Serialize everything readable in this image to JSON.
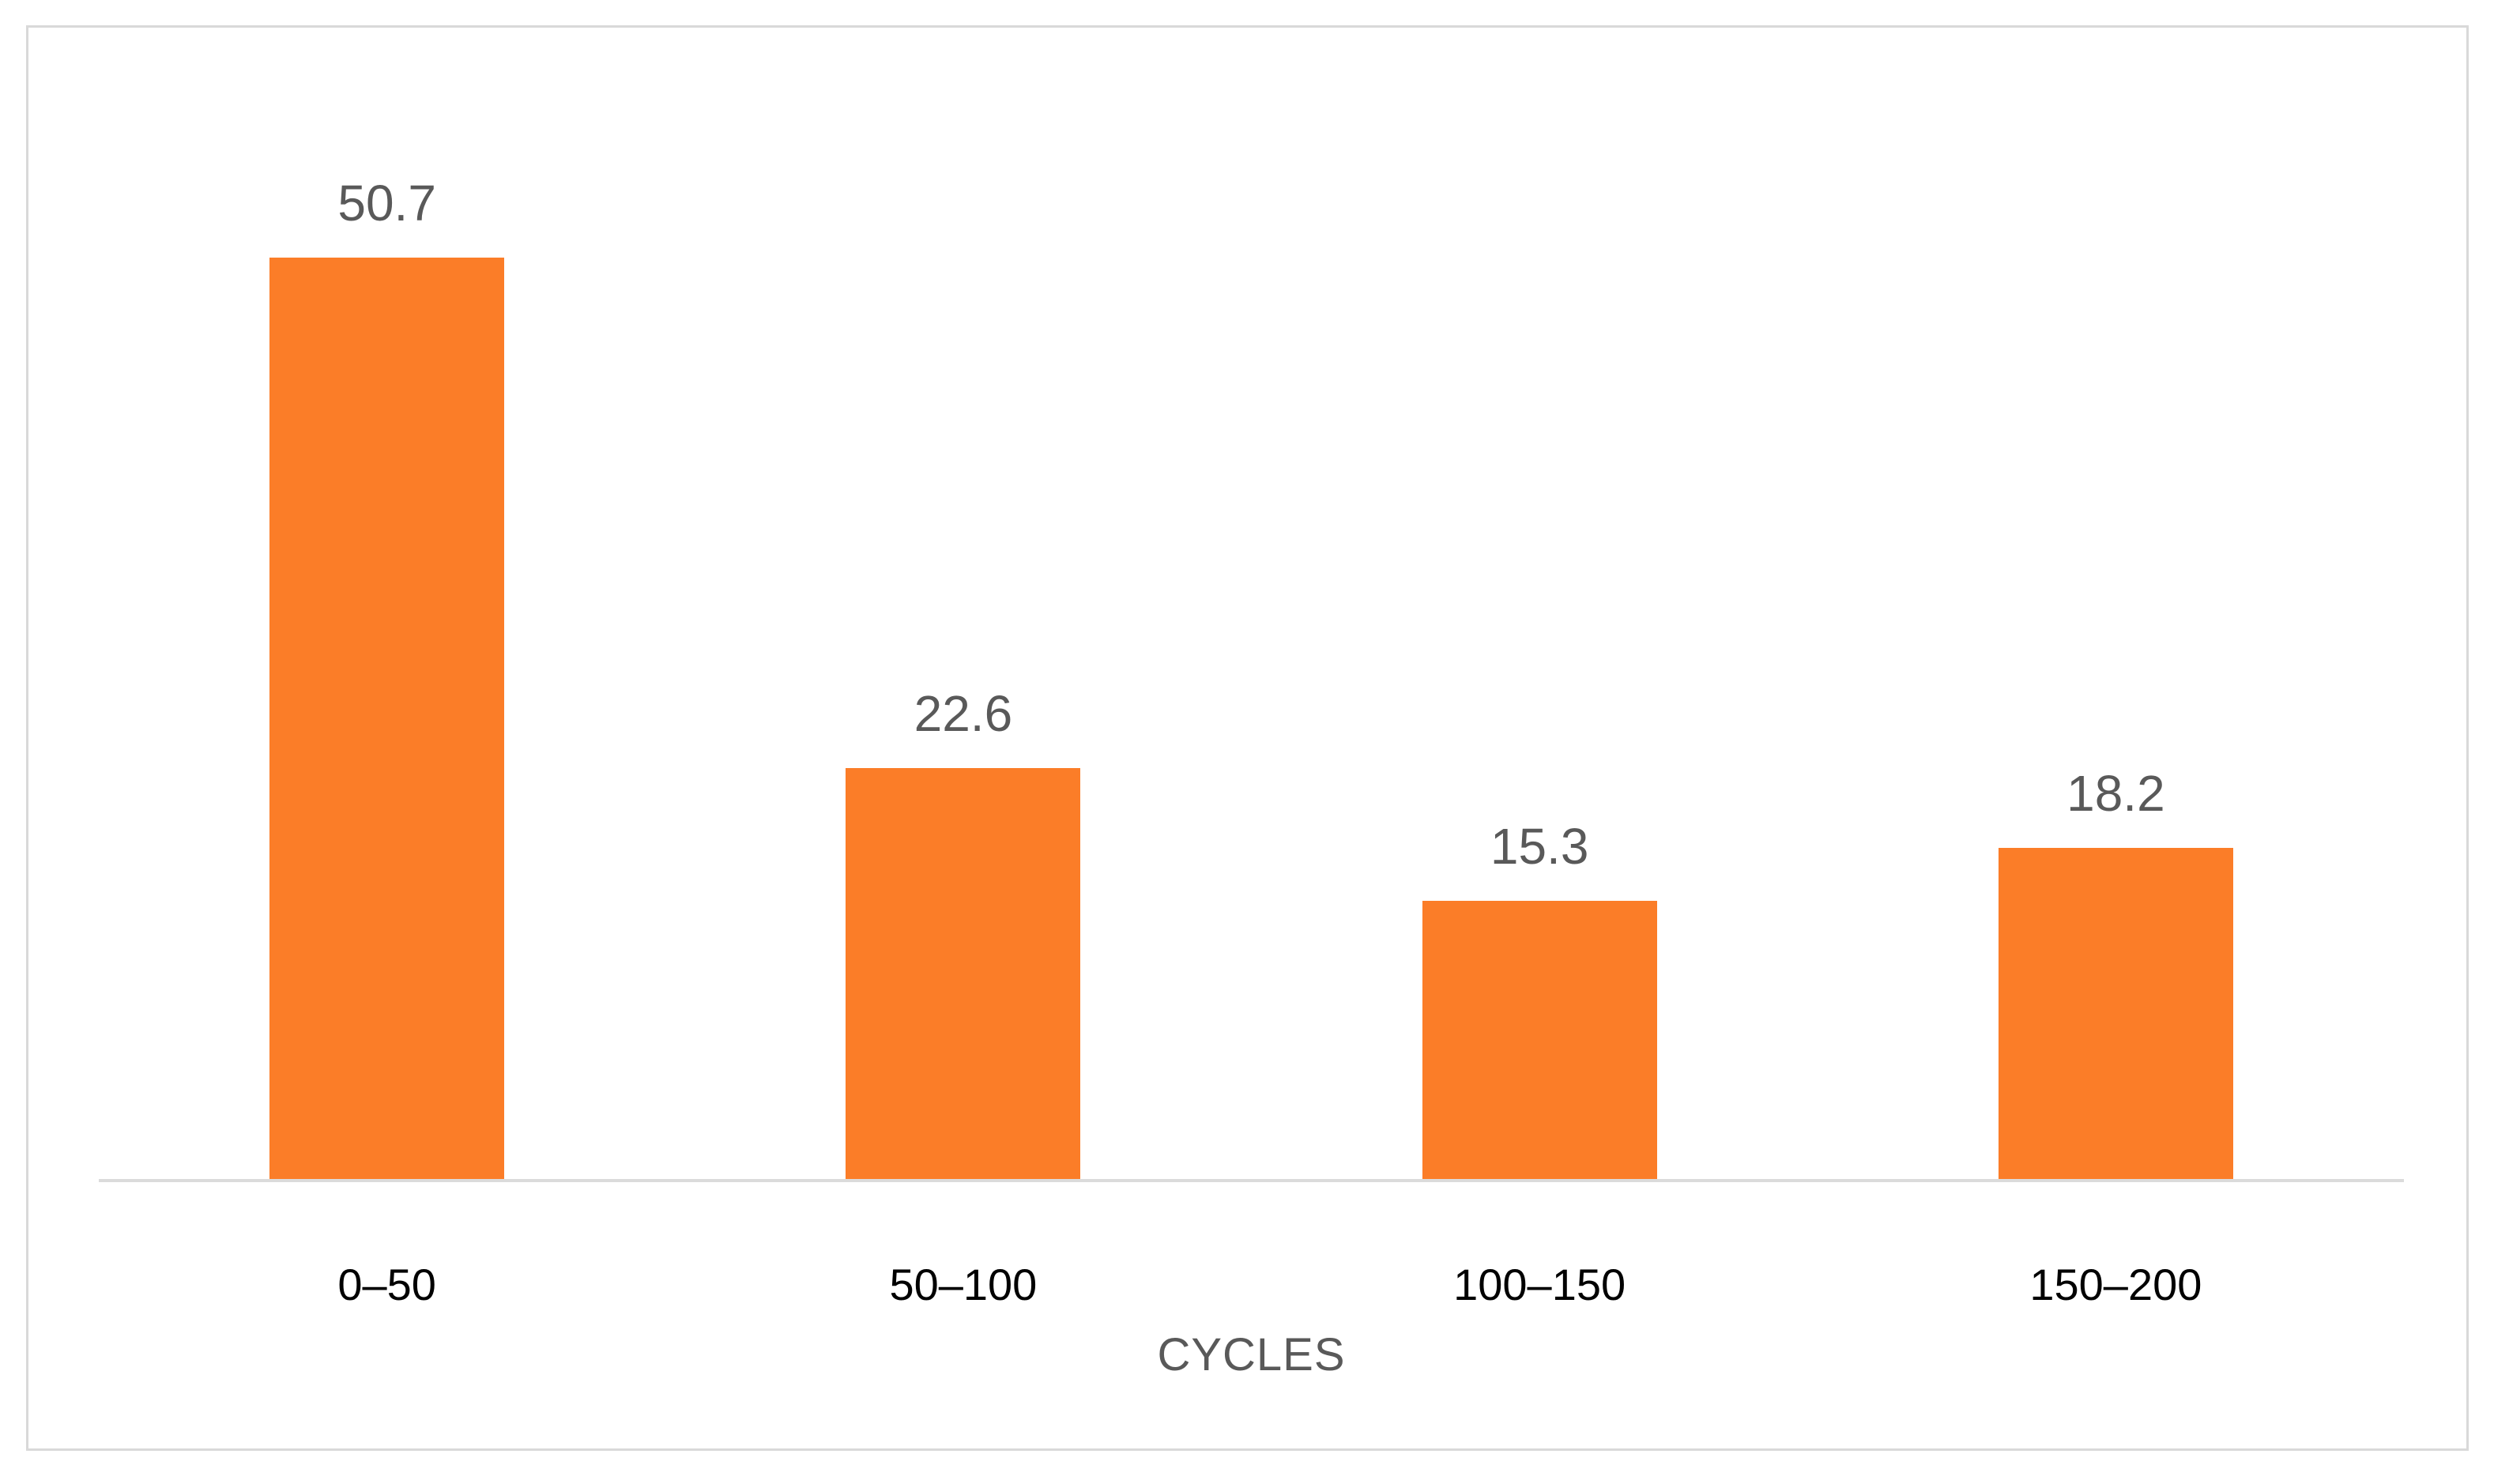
{
  "chart_data": {
    "type": "bar",
    "categories": [
      "0–50",
      "50–100",
      "100–150",
      "150–200"
    ],
    "values": [
      50.7,
      22.6,
      15.3,
      18.2
    ],
    "data_labels": [
      "50.7",
      "22.6",
      "15.3",
      "18.2"
    ],
    "title": "",
    "xlabel": "CYCLES",
    "ylabel": "",
    "ylim": [
      0,
      55
    ],
    "grid": false,
    "legend": false,
    "y_axis_visible": false,
    "colors": {
      "bar": "#FB7D28",
      "data_label": "#595959",
      "category_label": "#000000",
      "axis_title": "#595959",
      "axis_line": "#DBDBDB",
      "frame_border": "#D9D9D9",
      "background": "#FFFFFF"
    }
  }
}
